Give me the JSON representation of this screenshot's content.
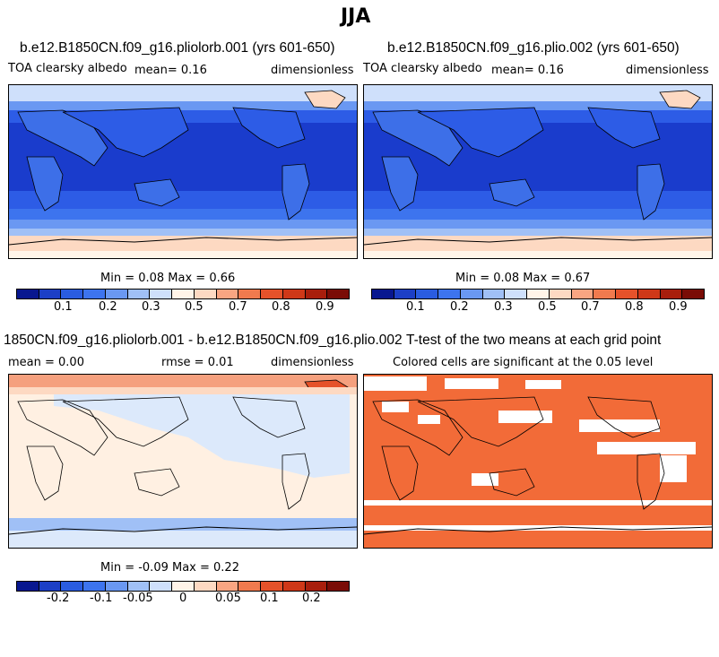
{
  "figure_title": "JJA",
  "panels": [
    {
      "title": "b.e12.B1850CN.f09_g16.pliolorb.001 (yrs 601-650)",
      "left_label": "TOA clearsky albedo",
      "center_label": "mean=    0.16",
      "right_label": "dimensionless",
      "minmax": "Min =   0.08 Max =   0.66"
    },
    {
      "title": "b.e12.B1850CN.f09_g16.plio.002 (yrs 601-650)",
      "left_label": "TOA clearsky albedo",
      "center_label": "mean=    0.16",
      "right_label": "dimensionless",
      "minmax": "Min =   0.08 Max =   0.67"
    },
    {
      "title": "1850CN.f09_g16.pliolorb.001 - b.e12.B1850CN.f09_g16.plio.002",
      "left_label": "mean =    0.00",
      "center_label": "rmse =    0.01",
      "right_label": "dimensionless",
      "minmax": "Min =  -0.09 Max =   0.22"
    },
    {
      "title": "T-test of the two means at each grid point",
      "subtitle": "Colored cells are significant at the 0.05 level"
    }
  ],
  "colorbar_abs": {
    "ticks": [
      "0.1",
      "0.2",
      "0.3",
      "0.5",
      "0.7",
      "0.8",
      "0.9"
    ],
    "colors": [
      "#08178f",
      "#1c3fc6",
      "#2a5ce0",
      "#3d74ee",
      "#6a98f2",
      "#a0c0f6",
      "#cfe0fb",
      "#fff4e8",
      "#fdd9c2",
      "#f9a582",
      "#f07a4e",
      "#e5522a",
      "#cf3818",
      "#a81e0c",
      "#7a0c06"
    ]
  },
  "colorbar_diff": {
    "ticks": [
      "-0.2",
      "-0.1",
      "-0.05",
      "0",
      "0.05",
      "0.1",
      "0.2"
    ],
    "colors": [
      "#08178f",
      "#1c3fc6",
      "#2a5ce0",
      "#3d74ee",
      "#6a98f2",
      "#a0c0f6",
      "#cfe0fb",
      "#fff4e8",
      "#fdd9c2",
      "#f9a582",
      "#f07a4e",
      "#e5522a",
      "#cf3818",
      "#a81e0c",
      "#7a0c06"
    ]
  },
  "map_colors": {
    "ocean_dark": "#1a3ccc",
    "ocean_mid": "#2d5ce6",
    "ice_light": "#cfe0fb",
    "ice_pale": "#fdd9c2",
    "land_blue": "#3d6fe8",
    "diff_base": "#fff0e2",
    "diff_blue": "#dce9fb",
    "diff_warm": "#f5a07e",
    "sig_orange": "#f26b38"
  }
}
